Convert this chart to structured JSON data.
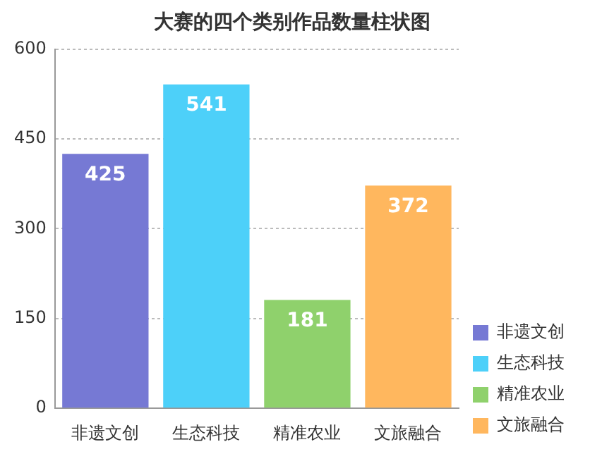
{
  "chart_data": {
    "type": "bar",
    "title": "大赛的四个类别作品数量柱状图",
    "categories": [
      "非遗文创",
      "生态科技",
      "精准农业",
      "文旅融合"
    ],
    "series": [
      {
        "name": "非遗文创",
        "color": "#7679d4",
        "values": [
          425,
          null,
          null,
          null
        ]
      },
      {
        "name": "生态科技",
        "color": "#4dd0f9",
        "values": [
          null,
          541,
          null,
          null
        ]
      },
      {
        "name": "精准农业",
        "color": "#8fd16c",
        "values": [
          null,
          null,
          181,
          null
        ]
      },
      {
        "name": "文旅融合",
        "color": "#ffb75e",
        "values": [
          null,
          null,
          null,
          372
        ]
      }
    ],
    "ylim": [
      0,
      600
    ],
    "yticks": [
      0,
      150,
      300,
      450,
      600
    ],
    "grid": "y",
    "legend": "right",
    "data_labels": true
  }
}
